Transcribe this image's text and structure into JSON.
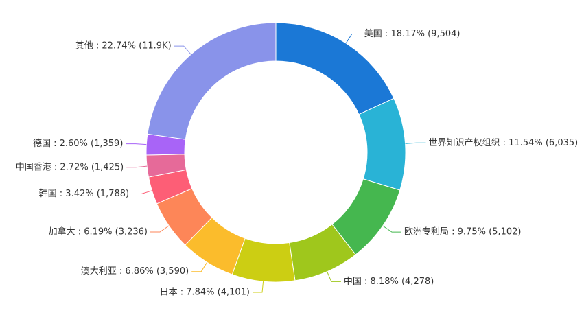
{
  "chart_data": {
    "type": "pie",
    "variant": "donut",
    "slices": [
      {
        "name": "美国",
        "percent": "18.17%",
        "value": 9504,
        "display": "9,504",
        "color": "#1b78d6"
      },
      {
        "name": "世界知识产权组织",
        "percent": "11.54%",
        "value": 6035,
        "display": "6,035",
        "color": "#29b3d6"
      },
      {
        "name": "欧洲专利局",
        "percent": "9.75%",
        "value": 5102,
        "display": "5,102",
        "color": "#45b74f"
      },
      {
        "name": "中国",
        "percent": "8.18%",
        "value": 4278,
        "display": "4,278",
        "color": "#9fc71c"
      },
      {
        "name": "日本",
        "percent": "7.84%",
        "value": 4101,
        "display": "4,101",
        "color": "#ccce13"
      },
      {
        "name": "澳大利亚",
        "percent": "6.86%",
        "value": 3590,
        "display": "3,590",
        "color": "#fbbc2c"
      },
      {
        "name": "加拿大",
        "percent": "6.19%",
        "value": 3236,
        "display": "3,236",
        "color": "#fd8658"
      },
      {
        "name": "韩国",
        "percent": "3.42%",
        "value": 1788,
        "display": "1,788",
        "color": "#fd5e76"
      },
      {
        "name": "中国香港",
        "percent": "2.72%",
        "value": 1425,
        "display": "1,425",
        "color": "#e66a99"
      },
      {
        "name": "德国",
        "percent": "2.60%",
        "value": 1359,
        "display": "1,359",
        "color": "#a864f7"
      },
      {
        "name": "其他",
        "percent": "22.74%",
        "value": 11900,
        "display": "11.9K",
        "color": "#8993ea"
      }
    ]
  }
}
